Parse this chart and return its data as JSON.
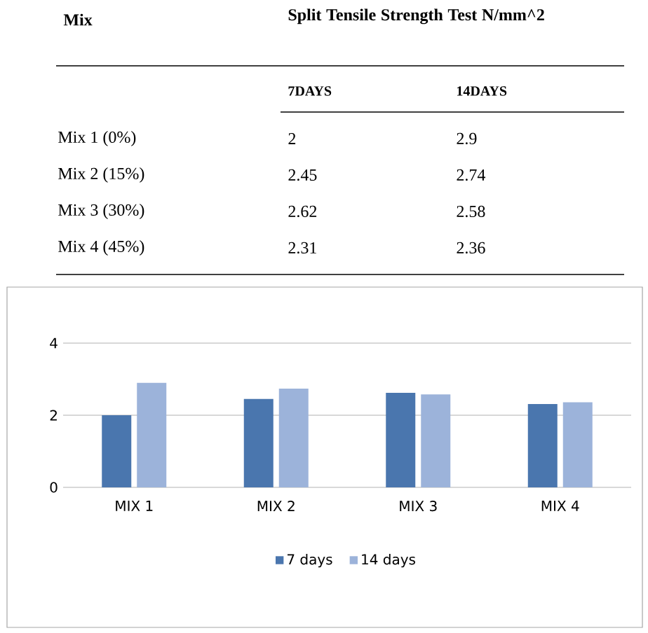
{
  "chart_data": {
    "type": "bar",
    "categories": [
      "MIX 1",
      "MIX 2",
      "MIX 3",
      "MIX 4"
    ],
    "series": [
      {
        "name": "7 days",
        "color": "#4a76ae",
        "values": [
          2,
          2.45,
          2.62,
          2.31
        ]
      },
      {
        "name": "14 days",
        "color": "#9cb3da",
        "values": [
          2.9,
          2.74,
          2.58,
          2.36
        ]
      }
    ],
    "ylim": [
      0,
      4
    ],
    "yticks": [
      0,
      2,
      4
    ],
    "grid": "y",
    "legend": "bottom",
    "annotations": [
      "Mix",
      "Split Tensile Strength Test N/mm^2",
      "7DAYS",
      "14DAYS",
      "Mix 1 (0%)",
      "2",
      "2.9",
      "Mix 2 (15%)",
      "2.45",
      "2.74",
      "Mix 3 (30%)",
      "2.62",
      "2.58",
      "Mix 4 (45%)",
      "2.31",
      "2.36"
    ]
  }
}
